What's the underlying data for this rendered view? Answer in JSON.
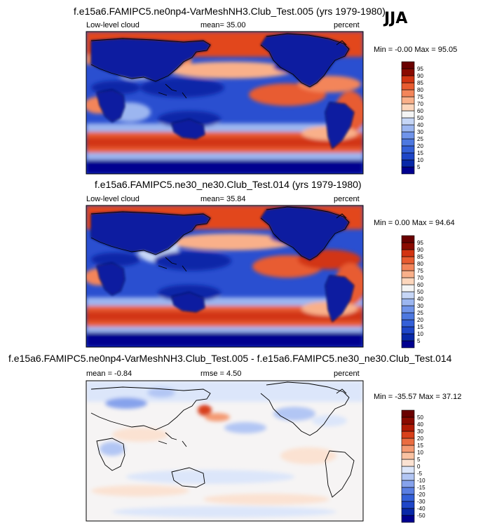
{
  "season_label": "JJA",
  "colors": {
    "frame": "#000000",
    "ocean_blue": "#2a4fd0",
    "deep_blue": "#00008f",
    "red": "#d93b16",
    "dark_red": "#7a0000",
    "light": "#f5f5f5"
  },
  "chart_data": [
    {
      "type": "heatmap",
      "title": "f.e15a6.FAMIPC5.ne0np4-VarMeshNH3.Club_Test.005 (yrs 1979-1980)",
      "left_label": "Low-level cloud",
      "center_label": "mean=  35.00",
      "right_label": "percent",
      "minmax_label": "Min = -0.00 Max = 95.05",
      "min": -0.0,
      "max": 95.05,
      "mean": 35.0,
      "colorbar": {
        "levels": [
          "5",
          "10",
          "15",
          "20",
          "25",
          "30",
          "40",
          "50",
          "60",
          "70",
          "75",
          "80",
          "85",
          "90",
          "95"
        ],
        "colors": [
          "#00008f",
          "#0828a8",
          "#1e46c8",
          "#3460d8",
          "#4d78e0",
          "#7094ea",
          "#9cb6f0",
          "#c6d6f6",
          "#f4f4f4",
          "#fcd6bc",
          "#f9b08a",
          "#f3855a",
          "#e85c30",
          "#d23412",
          "#8a0a00",
          "#6a0000"
        ]
      }
    },
    {
      "type": "heatmap",
      "title": "f.e15a6.FAMIPC5.ne30_ne30.Club_Test.014 (yrs 1979-1980)",
      "left_label": "Low-level cloud",
      "center_label": "mean=  35.84",
      "right_label": "percent",
      "minmax_label": "Min =  0.00 Max = 94.64",
      "min": 0.0,
      "max": 94.64,
      "mean": 35.84,
      "colorbar": {
        "levels": [
          "5",
          "10",
          "15",
          "20",
          "25",
          "30",
          "40",
          "50",
          "60",
          "70",
          "75",
          "80",
          "85",
          "90",
          "95"
        ],
        "colors": [
          "#00008f",
          "#0828a8",
          "#1e46c8",
          "#3460d8",
          "#4d78e0",
          "#7094ea",
          "#9cb6f0",
          "#c6d6f6",
          "#f4f4f4",
          "#fcd6bc",
          "#f9b08a",
          "#f3855a",
          "#e85c30",
          "#d23412",
          "#8a0a00",
          "#6a0000"
        ]
      }
    },
    {
      "type": "heatmap",
      "title": "f.e15a6.FAMIPC5.ne0np4-VarMeshNH3.Club_Test.005 - f.e15a6.FAMIPC5.ne30_ne30.Club_Test.014",
      "left_label": "mean =  -0.84",
      "center_label": "rmse =   4.50",
      "right_label": "percent",
      "minmax_label": "Min = -35.57 Max =  37.12",
      "min": -35.57,
      "max": 37.12,
      "mean": -0.84,
      "rmse": 4.5,
      "colorbar": {
        "levels": [
          "-50",
          "-40",
          "-30",
          "-20",
          "-15",
          "-10",
          "-5",
          "0",
          "5",
          "10",
          "15",
          "20",
          "30",
          "40",
          "50"
        ],
        "colors": [
          "#00008f",
          "#0828a8",
          "#1e46c8",
          "#3460d8",
          "#5a7ee2",
          "#86a2ec",
          "#b2c6f4",
          "#dce6fa",
          "#fbe2d2",
          "#f9c2a2",
          "#f49a72",
          "#ea6c40",
          "#d8401a",
          "#b01a04",
          "#8a0a00",
          "#6a0000"
        ]
      }
    }
  ]
}
